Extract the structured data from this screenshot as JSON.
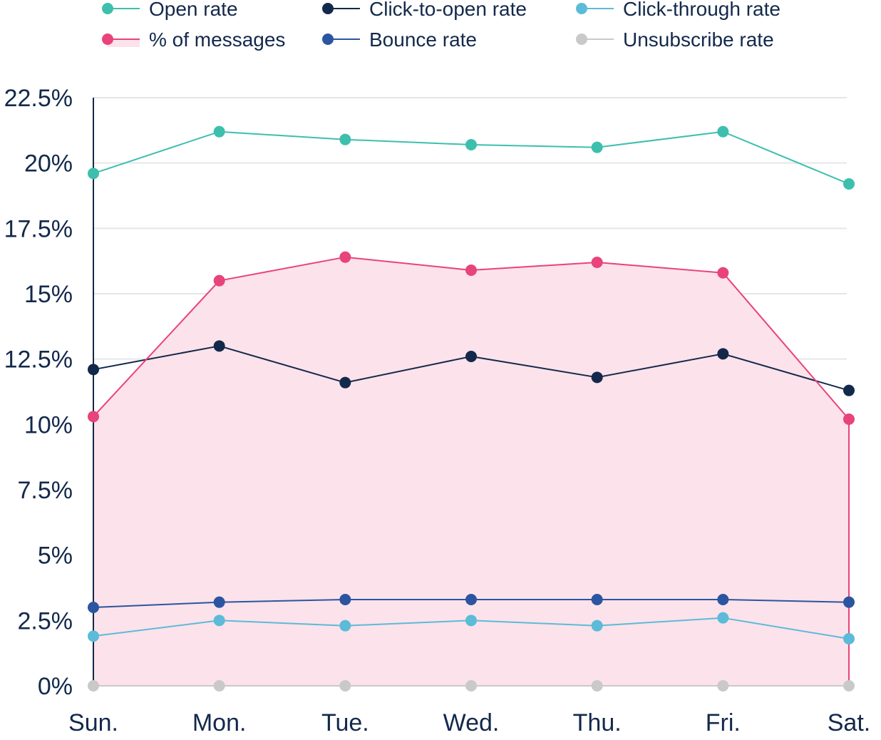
{
  "chart_data": {
    "type": "line",
    "categories": [
      "Sun.",
      "Mon.",
      "Tue.",
      "Wed.",
      "Thu.",
      "Fri.",
      "Sat."
    ],
    "y_ticks": [
      "0%",
      "2.5%",
      "5%",
      "7.5%",
      "10%",
      "12.5%",
      "15%",
      "17.5%",
      "20%",
      "22.5%"
    ],
    "ylim": [
      0,
      22.5
    ],
    "y_unit": "%",
    "grid": true,
    "legend_position": "top",
    "series": [
      {
        "name": "Open rate",
        "color": "#3dbfad",
        "style": "line",
        "values": [
          19.6,
          21.2,
          20.9,
          20.7,
          20.6,
          21.2,
          19.2
        ]
      },
      {
        "name": "Click-to-open rate",
        "color": "#13294b",
        "style": "line",
        "values": [
          12.1,
          13.0,
          11.6,
          12.6,
          11.8,
          12.7,
          11.3
        ]
      },
      {
        "name": "Click-through rate",
        "color": "#5bbbd8",
        "style": "line",
        "values": [
          1.9,
          2.5,
          2.3,
          2.5,
          2.3,
          2.6,
          1.8
        ]
      },
      {
        "name": "% of messages",
        "color": "#e8437a",
        "fill": "#fce2ea",
        "style": "area",
        "values": [
          10.3,
          15.5,
          16.4,
          15.9,
          16.2,
          15.8,
          10.2
        ]
      },
      {
        "name": "Bounce rate",
        "color": "#2b55a0",
        "style": "line",
        "values": [
          3.0,
          3.2,
          3.3,
          3.3,
          3.3,
          3.3,
          3.2
        ]
      },
      {
        "name": "Unsubscribe rate",
        "color": "#c9c9c9",
        "style": "line",
        "values": [
          0,
          0,
          0,
          0,
          0,
          0,
          0
        ]
      }
    ]
  }
}
